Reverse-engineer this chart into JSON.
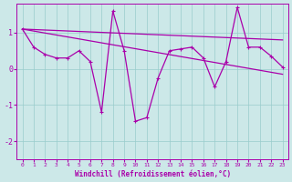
{
  "x": [
    0,
    1,
    2,
    3,
    4,
    5,
    6,
    7,
    8,
    9,
    10,
    11,
    12,
    13,
    14,
    15,
    16,
    17,
    18,
    19,
    20,
    21,
    22,
    23
  ],
  "y_main": [
    1.1,
    0.6,
    0.4,
    0.3,
    0.3,
    0.5,
    0.2,
    -1.2,
    1.6,
    0.5,
    -1.45,
    -1.35,
    -0.25,
    0.5,
    0.55,
    0.6,
    0.3,
    -0.5,
    0.2,
    1.7,
    0.6,
    0.6,
    0.35,
    0.05
  ],
  "upper_line": [
    [
      0,
      1.1
    ],
    [
      23,
      0.8
    ]
  ],
  "lower_line": [
    [
      0,
      1.1
    ],
    [
      23,
      -0.15
    ]
  ],
  "background_color": "#cce8e8",
  "line_color": "#aa00aa",
  "grid_color": "#99cccc",
  "xlabel": "Windchill (Refroidissement éolien,°C)",
  "xlim": [
    -0.5,
    23.5
  ],
  "ylim": [
    -2.5,
    1.8
  ],
  "yticks": [
    -2,
    -1,
    0,
    1
  ],
  "xticks": [
    0,
    1,
    2,
    3,
    4,
    5,
    6,
    7,
    8,
    9,
    10,
    11,
    12,
    13,
    14,
    15,
    16,
    17,
    18,
    19,
    20,
    21,
    22,
    23
  ]
}
